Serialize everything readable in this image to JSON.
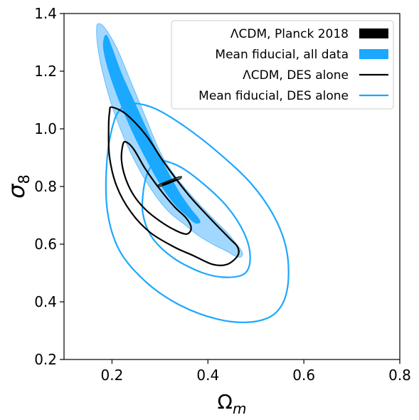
{
  "chart_data": {
    "type": "contour",
    "xlabel": "Ω",
    "xlabel_sub": "m",
    "ylabel": "σ",
    "ylabel_sub": "8",
    "xlim": [
      0.1,
      0.8
    ],
    "ylim": [
      0.2,
      1.4
    ],
    "xticks": [
      0.2,
      0.4,
      0.6,
      0.8
    ],
    "xtick_labels": [
      "0.2",
      "0.4",
      "0.6",
      "0.8"
    ],
    "yticks": [
      0.2,
      0.4,
      0.6,
      0.8,
      1.0,
      1.2,
      1.4
    ],
    "ytick_labels": [
      "0.2",
      "0.4",
      "0.6",
      "0.8",
      "1.0",
      "1.2",
      "1.4"
    ],
    "grid": false,
    "legend_position": "top-right",
    "legend": [
      {
        "label": "ΛCDM, Planck 2018",
        "style": "filled",
        "color": "#000000"
      },
      {
        "label": "Mean fiducial, all data",
        "style": "filled",
        "color": "#1ba8ff"
      },
      {
        "label": "ΛCDM, DES alone",
        "style": "line",
        "color": "#000000"
      },
      {
        "label": "Mean fiducial, DES alone",
        "style": "line",
        "color": "#1ba8ff"
      }
    ],
    "series": [
      {
        "name": "ΛCDM, Planck 2018",
        "style": "filled",
        "contours": [
          {
            "level": "outer",
            "fill": "#555555",
            "stroke": "#000000",
            "opacity": 0.9,
            "points": [
              [
                0.296,
                0.805
              ],
              [
                0.31,
                0.815
              ],
              [
                0.325,
                0.825
              ],
              [
                0.338,
                0.833
              ],
              [
                0.345,
                0.835
              ],
              [
                0.342,
                0.826
              ],
              [
                0.33,
                0.818
              ],
              [
                0.315,
                0.808
              ],
              [
                0.3,
                0.8
              ]
            ]
          },
          {
            "level": "inner",
            "fill": "#000000",
            "stroke": "#000000",
            "opacity": 1,
            "points": [
              [
                0.305,
                0.808
              ],
              [
                0.32,
                0.817
              ],
              [
                0.333,
                0.825
              ],
              [
                0.336,
                0.822
              ],
              [
                0.322,
                0.813
              ],
              [
                0.308,
                0.805
              ]
            ]
          }
        ]
      },
      {
        "name": "Mean fiducial, all data",
        "style": "filled",
        "contours": [
          {
            "level": "outer",
            "fill": "#a2d8ff",
            "stroke": "#62bdf7",
            "opacity": 1,
            "points": [
              [
                0.172,
                1.365
              ],
              [
                0.185,
                1.35
              ],
              [
                0.21,
                1.28
              ],
              [
                0.24,
                1.16
              ],
              [
                0.27,
                1.04
              ],
              [
                0.3,
                0.92
              ],
              [
                0.33,
                0.84
              ],
              [
                0.37,
                0.76
              ],
              [
                0.41,
                0.69
              ],
              [
                0.44,
                0.64
              ],
              [
                0.462,
                0.595
              ],
              [
                0.472,
                0.57
              ],
              [
                0.468,
                0.555
              ],
              [
                0.455,
                0.56
              ],
              [
                0.44,
                0.575
              ],
              [
                0.41,
                0.6
              ],
              [
                0.38,
                0.63
              ],
              [
                0.35,
                0.67
              ],
              [
                0.32,
                0.71
              ],
              [
                0.29,
                0.77
              ],
              [
                0.26,
                0.85
              ],
              [
                0.23,
                0.95
              ],
              [
                0.2,
                1.08
              ],
              [
                0.18,
                1.2
              ],
              [
                0.17,
                1.29
              ],
              [
                0.168,
                1.35
              ]
            ]
          },
          {
            "level": "inner",
            "fill": "#1ba8ff",
            "stroke": "#1ba8ff",
            "opacity": 1,
            "points": [
              [
                0.188,
                1.325
              ],
              [
                0.2,
                1.28
              ],
              [
                0.22,
                1.19
              ],
              [
                0.25,
                1.08
              ],
              [
                0.28,
                0.97
              ],
              [
                0.31,
                0.87
              ],
              [
                0.34,
                0.78
              ],
              [
                0.365,
                0.72
              ],
              [
                0.38,
                0.69
              ],
              [
                0.383,
                0.675
              ],
              [
                0.372,
                0.675
              ],
              [
                0.355,
                0.7
              ],
              [
                0.33,
                0.74
              ],
              [
                0.3,
                0.81
              ],
              [
                0.27,
                0.9
              ],
              [
                0.24,
                1.0
              ],
              [
                0.21,
                1.12
              ],
              [
                0.19,
                1.22
              ],
              [
                0.182,
                1.29
              ]
            ]
          }
        ]
      },
      {
        "name": "ΛCDM, DES alone",
        "style": "line",
        "color": "#000000",
        "contours": [
          {
            "level": "outer",
            "points": [
              [
                0.2,
                1.075
              ],
              [
                0.23,
                1.05
              ],
              [
                0.27,
                0.98
              ],
              [
                0.31,
                0.88
              ],
              [
                0.36,
                0.77
              ],
              [
                0.41,
                0.68
              ],
              [
                0.445,
                0.62
              ],
              [
                0.462,
                0.59
              ],
              [
                0.462,
                0.56
              ],
              [
                0.44,
                0.53
              ],
              [
                0.41,
                0.53
              ],
              [
                0.37,
                0.56
              ],
              [
                0.33,
                0.59
              ],
              [
                0.28,
                0.64
              ],
              [
                0.24,
                0.71
              ],
              [
                0.21,
                0.8
              ],
              [
                0.195,
                0.9
              ],
              [
                0.193,
                1.0
              ],
              [
                0.195,
                1.06
              ]
            ]
          },
          {
            "level": "inner",
            "points": [
              [
                0.228,
                0.955
              ],
              [
                0.245,
                0.93
              ],
              [
                0.27,
                0.86
              ],
              [
                0.3,
                0.79
              ],
              [
                0.33,
                0.73
              ],
              [
                0.355,
                0.69
              ],
              [
                0.365,
                0.655
              ],
              [
                0.355,
                0.635
              ],
              [
                0.33,
                0.65
              ],
              [
                0.3,
                0.68
              ],
              [
                0.27,
                0.72
              ],
              [
                0.245,
                0.77
              ],
              [
                0.228,
                0.83
              ],
              [
                0.22,
                0.89
              ],
              [
                0.222,
                0.94
              ]
            ]
          }
        ]
      },
      {
        "name": "Mean fiducial, DES alone",
        "style": "line",
        "color": "#1ba8ff",
        "contours": [
          {
            "level": "outer",
            "points": [
              [
                0.242,
                1.09
              ],
              [
                0.29,
                1.07
              ],
              [
                0.35,
                1.01
              ],
              [
                0.42,
                0.92
              ],
              [
                0.49,
                0.81
              ],
              [
                0.54,
                0.69
              ],
              [
                0.565,
                0.57
              ],
              [
                0.565,
                0.44
              ],
              [
                0.54,
                0.36
              ],
              [
                0.49,
                0.33
              ],
              [
                0.42,
                0.34
              ],
              [
                0.34,
                0.39
              ],
              [
                0.27,
                0.47
              ],
              [
                0.215,
                0.58
              ],
              [
                0.19,
                0.72
              ],
              [
                0.19,
                0.9
              ],
              [
                0.205,
                1.03
              ],
              [
                0.225,
                1.08
              ]
            ]
          },
          {
            "level": "inner",
            "points": [
              [
                0.295,
                0.89
              ],
              [
                0.34,
                0.87
              ],
              [
                0.39,
                0.81
              ],
              [
                0.44,
                0.73
              ],
              [
                0.475,
                0.64
              ],
              [
                0.488,
                0.56
              ],
              [
                0.478,
                0.5
              ],
              [
                0.44,
                0.485
              ],
              [
                0.39,
                0.5
              ],
              [
                0.33,
                0.55
              ],
              [
                0.285,
                0.62
              ],
              [
                0.265,
                0.7
              ],
              [
                0.265,
                0.78
              ],
              [
                0.275,
                0.85
              ]
            ]
          }
        ]
      }
    ]
  }
}
